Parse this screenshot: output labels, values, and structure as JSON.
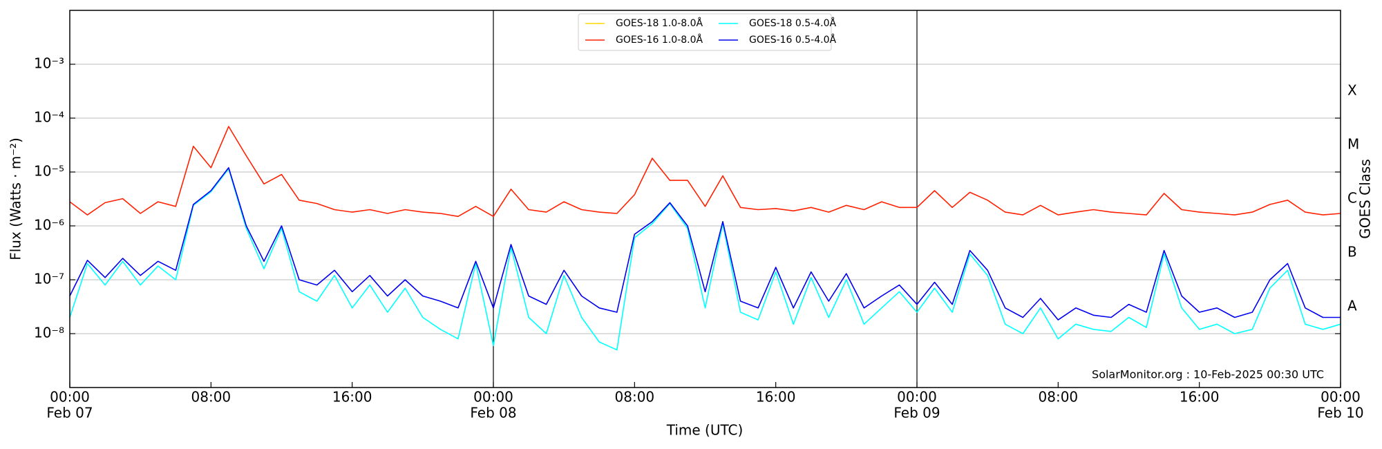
{
  "chart_data": {
    "type": "line",
    "xlabel": "Time (UTC)",
    "ylabel": "Flux (Watts · m⁻²)",
    "y2label": "GOES Class",
    "annotation": "SolarMonitor.org : 10-Feb-2025 00:30 UTC",
    "log_y": true,
    "grid": true,
    "legend": "upper center",
    "x": [
      0,
      1,
      2,
      3,
      4,
      5,
      6,
      7,
      8,
      9,
      10,
      11,
      12,
      13,
      14,
      15,
      16,
      17,
      18,
      19,
      20,
      21,
      22,
      23,
      24,
      25,
      26,
      27,
      28,
      29,
      30,
      31,
      32,
      33,
      34,
      35,
      36,
      37,
      38,
      39,
      40,
      41,
      42,
      43,
      44,
      45,
      46,
      47,
      48,
      49,
      50,
      51,
      52,
      53,
      54,
      55,
      56,
      57,
      58,
      59,
      60,
      61,
      62,
      63,
      64,
      65,
      66,
      67,
      68,
      69,
      70,
      71,
      72
    ],
    "xlim": [
      0,
      72
    ],
    "xticks": [
      {
        "value": 0,
        "label": "00:00"
      },
      {
        "value": 8,
        "label": "08:00"
      },
      {
        "value": 16,
        "label": "16:00"
      },
      {
        "value": 24,
        "label": "00:00"
      },
      {
        "value": 32,
        "label": "08:00"
      },
      {
        "value": 40,
        "label": "16:00"
      },
      {
        "value": 48,
        "label": "00:00"
      },
      {
        "value": 56,
        "label": "08:00"
      },
      {
        "value": 64,
        "label": "16:00"
      },
      {
        "value": 72,
        "label": "00:00"
      }
    ],
    "xtick_dates": [
      "Feb 07",
      null,
      null,
      "Feb 08",
      null,
      null,
      "Feb 09",
      null,
      null,
      "Feb 10"
    ],
    "day_lines": [
      24,
      48
    ],
    "ylim": [
      1e-09,
      0.01
    ],
    "yticks": [
      {
        "value": 1e-08,
        "label": "10⁻⁸"
      },
      {
        "value": 1e-07,
        "label": "10⁻⁷"
      },
      {
        "value": 1e-06,
        "label": "10⁻⁶"
      },
      {
        "value": 1e-05,
        "label": "10⁻⁵"
      },
      {
        "value": 0.0001,
        "label": "10⁻⁴"
      },
      {
        "value": 0.001,
        "label": "10⁻³"
      }
    ],
    "y2ticks": [
      {
        "value": 1e-08,
        "label": "A"
      },
      {
        "value": 1e-07,
        "label": "B"
      },
      {
        "value": 1e-06,
        "label": "C"
      },
      {
        "value": 1e-05,
        "label": "M"
      },
      {
        "value": 0.0001,
        "label": "X"
      }
    ],
    "series": [
      {
        "name": "GOES-18 1.0-8.0Å",
        "color": "#ffd700",
        "values": [
          null,
          null,
          null,
          null,
          null,
          null,
          null,
          null,
          null,
          null,
          null,
          null,
          null,
          null,
          null,
          null,
          null,
          null,
          null,
          null,
          null,
          null,
          null,
          null,
          null,
          null,
          null,
          null,
          null,
          null,
          null,
          null,
          null,
          null,
          null,
          null,
          null,
          null,
          null,
          null,
          null,
          null,
          null,
          null,
          null,
          null,
          null,
          null,
          null,
          null,
          null,
          null,
          null,
          null,
          null,
          null,
          null,
          null,
          null,
          null,
          null,
          null,
          null,
          null,
          null,
          null,
          null,
          null,
          null,
          null,
          null,
          null,
          null
        ]
      },
      {
        "name": "GOES-16 1.0-8.0Å",
        "color": "#ff2000",
        "values": [
          2.8e-06,
          1.6e-06,
          2.7e-06,
          3.2e-06,
          1.7e-06,
          2.8e-06,
          2.3e-06,
          3e-05,
          1.2e-05,
          7e-05,
          2e-05,
          6e-06,
          9e-06,
          3e-06,
          2.6e-06,
          2e-06,
          1.8e-06,
          2e-06,
          1.7e-06,
          2e-06,
          1.8e-06,
          1.7e-06,
          1.5e-06,
          2.3e-06,
          1.5e-06,
          4.8e-06,
          2e-06,
          1.8e-06,
          2.8e-06,
          2e-06,
          1.8e-06,
          1.7e-06,
          3.8e-06,
          1.8e-05,
          7e-06,
          7e-06,
          2.3e-06,
          8.5e-06,
          2.2e-06,
          2e-06,
          2.1e-06,
          1.9e-06,
          2.2e-06,
          1.8e-06,
          2.4e-06,
          2e-06,
          2.8e-06,
          2.2e-06,
          2.2e-06,
          4.5e-06,
          2.2e-06,
          4.2e-06,
          3e-06,
          1.8e-06,
          1.6e-06,
          2.4e-06,
          1.6e-06,
          1.8e-06,
          2e-06,
          1.8e-06,
          1.7e-06,
          1.6e-06,
          4e-06,
          2e-06,
          1.8e-06,
          1.7e-06,
          1.6e-06,
          1.8e-06,
          2.5e-06,
          3e-06,
          1.8e-06,
          1.6e-06,
          1.7e-06
        ]
      },
      {
        "name": "GOES-18 0.5-4.0Å",
        "color": "#00ffff",
        "values": [
          2e-08,
          2e-07,
          8e-08,
          2.2e-07,
          8e-08,
          1.8e-07,
          1e-07,
          2.4e-06,
          4.3e-06,
          1.15e-05,
          9e-07,
          1.6e-07,
          9e-07,
          6e-08,
          4e-08,
          1.2e-07,
          3e-08,
          8e-08,
          2.5e-08,
          7e-08,
          2e-08,
          1.2e-08,
          8e-09,
          2e-07,
          6e-09,
          4e-07,
          2e-08,
          1e-08,
          1.2e-07,
          2e-08,
          7e-09,
          5e-09,
          6e-07,
          1.1e-06,
          2.6e-06,
          9e-07,
          3e-08,
          1.1e-06,
          2.5e-08,
          1.8e-08,
          1.4e-07,
          1.5e-08,
          1.1e-07,
          2e-08,
          1e-07,
          1.5e-08,
          3e-08,
          6e-08,
          2.5e-08,
          7e-08,
          2.5e-08,
          3e-07,
          1.2e-07,
          1.5e-08,
          1e-08,
          3e-08,
          8e-09,
          1.5e-08,
          1.2e-08,
          1.1e-08,
          2e-08,
          1.3e-08,
          3e-07,
          3e-08,
          1.2e-08,
          1.5e-08,
          1e-08,
          1.2e-08,
          7e-08,
          1.5e-07,
          1.5e-08,
          1.2e-08,
          1.5e-08
        ]
      },
      {
        "name": "GOES-16 0.5-4.0Å",
        "color": "#0000ee",
        "values": [
          5e-08,
          2.3e-07,
          1.1e-07,
          2.5e-07,
          1.2e-07,
          2.2e-07,
          1.5e-07,
          2.5e-06,
          4.5e-06,
          1.2e-05,
          1e-06,
          2.2e-07,
          1e-06,
          1e-07,
          8e-08,
          1.5e-07,
          6e-08,
          1.2e-07,
          5e-08,
          1e-07,
          5e-08,
          4e-08,
          3e-08,
          2.2e-07,
          3e-08,
          4.5e-07,
          5e-08,
          3.5e-08,
          1.5e-07,
          5e-08,
          3e-08,
          2.5e-08,
          7e-07,
          1.2e-06,
          2.7e-06,
          1e-06,
          6e-08,
          1.2e-06,
          4e-08,
          3e-08,
          1.7e-07,
          3e-08,
          1.4e-07,
          4e-08,
          1.3e-07,
          3e-08,
          5e-08,
          8e-08,
          3.5e-08,
          9e-08,
          3.5e-08,
          3.5e-07,
          1.5e-07,
          3e-08,
          2e-08,
          4.5e-08,
          1.8e-08,
          3e-08,
          2.2e-08,
          2e-08,
          3.5e-08,
          2.5e-08,
          3.5e-07,
          5e-08,
          2.5e-08,
          3e-08,
          2e-08,
          2.5e-08,
          1e-07,
          2e-07,
          3e-08,
          2e-08,
          2e-08
        ]
      }
    ]
  }
}
